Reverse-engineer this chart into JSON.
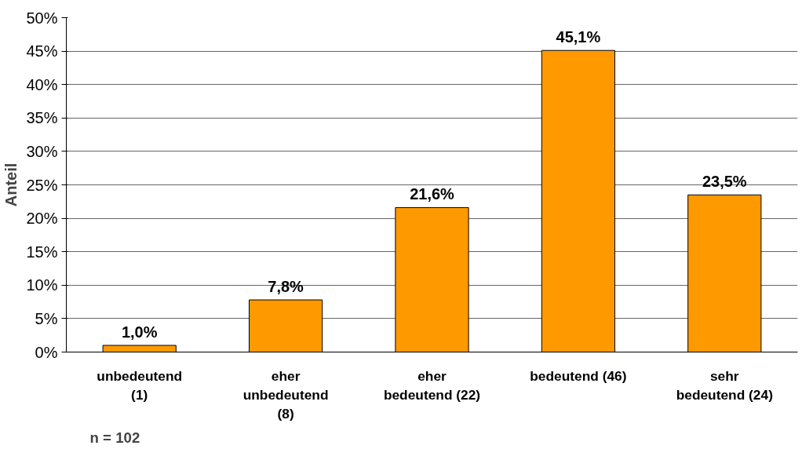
{
  "chart_data": {
    "type": "bar",
    "ylabel": "Anteil",
    "categories": [
      "unbedeutend\n(1)",
      "eher\nunbedeutend\n(8)",
      "eher\nbedeutend (22)",
      "bedeutend (46)",
      "sehr\nbedeutend (24)"
    ],
    "values": [
      1.0,
      7.8,
      21.6,
      45.1,
      23.5
    ],
    "value_labels": [
      "1,0%",
      "7,8%",
      "21,6%",
      "45,1%",
      "23,5%"
    ],
    "color": "#ff9900",
    "ylim": [
      0,
      50
    ],
    "yticks": [
      {
        "value": 0,
        "label": "0%"
      },
      {
        "value": 5,
        "label": "5%"
      },
      {
        "value": 10,
        "label": "10%"
      },
      {
        "value": 15,
        "label": "15%"
      },
      {
        "value": 20,
        "label": "20%"
      },
      {
        "value": 25,
        "label": "25%"
      },
      {
        "value": 30,
        "label": "30%"
      },
      {
        "value": 35,
        "label": "35%"
      },
      {
        "value": 40,
        "label": "40%"
      },
      {
        "value": 45,
        "label": "45%"
      },
      {
        "value": 50,
        "label": "50%"
      }
    ],
    "grid": "y",
    "annotations": [
      "n = 102"
    ]
  }
}
